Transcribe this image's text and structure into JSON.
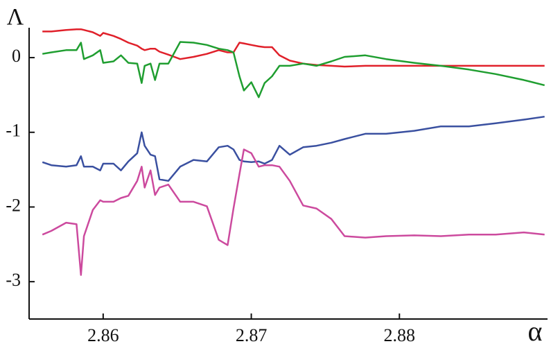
{
  "chart_data": {
    "type": "line",
    "x_label": "α",
    "y_label": "Λ",
    "x": [
      2.8559,
      2.8565,
      2.8575,
      2.8582,
      2.8585,
      2.8587,
      2.8593,
      2.8598,
      2.86,
      2.8607,
      2.8612,
      2.8617,
      2.8623,
      2.8626,
      2.8628,
      2.8632,
      2.8635,
      2.8638,
      2.8644,
      2.8652,
      2.8661,
      2.867,
      2.8678,
      2.8684,
      2.8688,
      2.8692,
      2.8695,
      2.87,
      2.8705,
      2.8709,
      2.8714,
      2.8719,
      2.8726,
      2.8735,
      2.8744,
      2.8754,
      2.8763,
      2.8777,
      2.8791,
      2.881,
      2.8828,
      2.8847,
      2.8865,
      2.8884,
      2.8898
    ],
    "series": [
      {
        "color": "#e0202a",
        "values": [
          0.35,
          0.35,
          0.37,
          0.38,
          0.38,
          0.37,
          0.34,
          0.29,
          0.33,
          0.29,
          0.25,
          0.2,
          0.16,
          0.12,
          0.1,
          0.12,
          0.12,
          0.08,
          0.04,
          -0.02,
          0.01,
          0.05,
          0.1,
          0.07,
          0.07,
          0.2,
          0.19,
          0.17,
          0.15,
          0.14,
          0.14,
          0.03,
          -0.04,
          -0.08,
          -0.1,
          -0.11,
          -0.12,
          -0.11,
          -0.11,
          -0.11,
          -0.11,
          -0.11,
          -0.11,
          -0.11,
          -0.11
        ]
      },
      {
        "color": "#1f9e30",
        "values": [
          0.05,
          0.07,
          0.1,
          0.1,
          0.2,
          -0.02,
          0.03,
          0.1,
          -0.07,
          -0.05,
          0.03,
          -0.07,
          -0.08,
          -0.34,
          -0.11,
          -0.08,
          -0.3,
          -0.08,
          -0.08,
          0.21,
          0.2,
          0.17,
          0.12,
          0.1,
          0.07,
          -0.25,
          -0.44,
          -0.33,
          -0.53,
          -0.34,
          -0.25,
          -0.11,
          -0.11,
          -0.08,
          -0.11,
          -0.05,
          0.01,
          0.03,
          -0.02,
          -0.07,
          -0.11,
          -0.16,
          -0.22,
          -0.3,
          -0.37
        ]
      },
      {
        "color": "#3a50a0",
        "values": [
          -1.4,
          -1.44,
          -1.46,
          -1.44,
          -1.32,
          -1.46,
          -1.46,
          -1.51,
          -1.42,
          -1.42,
          -1.51,
          -1.39,
          -1.28,
          -1.0,
          -1.18,
          -1.3,
          -1.32,
          -1.63,
          -1.65,
          -1.46,
          -1.37,
          -1.39,
          -1.2,
          -1.18,
          -1.23,
          -1.37,
          -1.39,
          -1.4,
          -1.39,
          -1.42,
          -1.37,
          -1.18,
          -1.3,
          -1.2,
          -1.18,
          -1.14,
          -1.09,
          -1.02,
          -1.02,
          -0.98,
          -0.92,
          -0.92,
          -0.88,
          -0.83,
          -0.79
        ]
      },
      {
        "color": "#cc4a9e",
        "values": [
          -2.37,
          -2.32,
          -2.21,
          -2.23,
          -2.91,
          -2.39,
          -2.04,
          -1.91,
          -1.93,
          -1.93,
          -1.88,
          -1.85,
          -1.65,
          -1.46,
          -1.74,
          -1.51,
          -1.84,
          -1.74,
          -1.7,
          -1.93,
          -1.93,
          -1.99,
          -2.44,
          -2.51,
          -2.02,
          -1.56,
          -1.23,
          -1.28,
          -1.46,
          -1.44,
          -1.44,
          -1.46,
          -1.65,
          -1.98,
          -2.02,
          -2.16,
          -2.39,
          -2.41,
          -2.39,
          -2.38,
          -2.39,
          -2.37,
          -2.37,
          -2.34,
          -2.37
        ]
      }
    ],
    "xlim": [
      2.855,
      2.89
    ],
    "ylim": [
      -3.5,
      0.4
    ],
    "xticks": [
      2.86,
      2.87,
      2.88
    ],
    "yticks": [
      0,
      -1,
      -2,
      -3
    ]
  }
}
